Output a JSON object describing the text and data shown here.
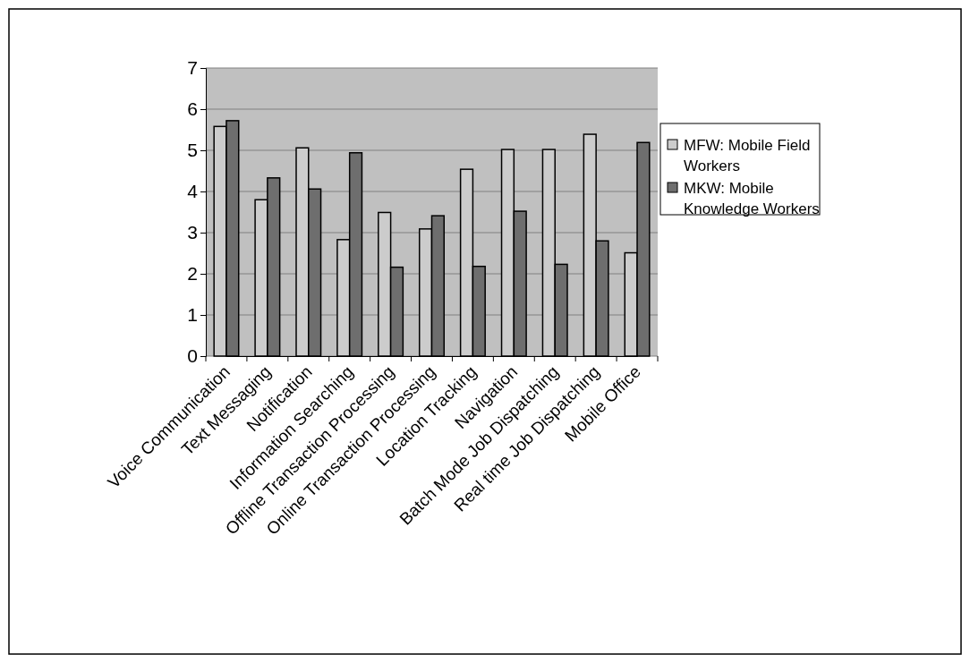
{
  "chart_data": {
    "type": "bar",
    "categories": [
      "Voice Communication",
      "Text Messaging",
      "Notification",
      "Information Searching",
      "Offline Transaction Processing",
      "Online Transaction Processing",
      "Location Tracking",
      "Navigation",
      "Batch Mode Job Dispatching",
      "Real time Job Dispatching",
      "Mobile Office"
    ],
    "series": [
      {
        "name": "MFW: Mobile Field Workers",
        "color": "#cccccc",
        "values": [
          5.58,
          3.8,
          5.06,
          2.83,
          3.49,
          3.09,
          4.54,
          5.02,
          5.02,
          5.39,
          2.51
        ]
      },
      {
        "name": "MKW: Mobile Knowledge Workers",
        "color": "#6e6e6e",
        "values": [
          5.72,
          4.33,
          4.06,
          4.94,
          2.16,
          3.41,
          2.18,
          3.52,
          2.23,
          2.8,
          5.19
        ]
      }
    ],
    "ylim": [
      0,
      7
    ],
    "yticks": [
      0,
      1,
      2,
      3,
      4,
      5,
      6,
      7
    ],
    "grid": "y",
    "legend": "right"
  }
}
